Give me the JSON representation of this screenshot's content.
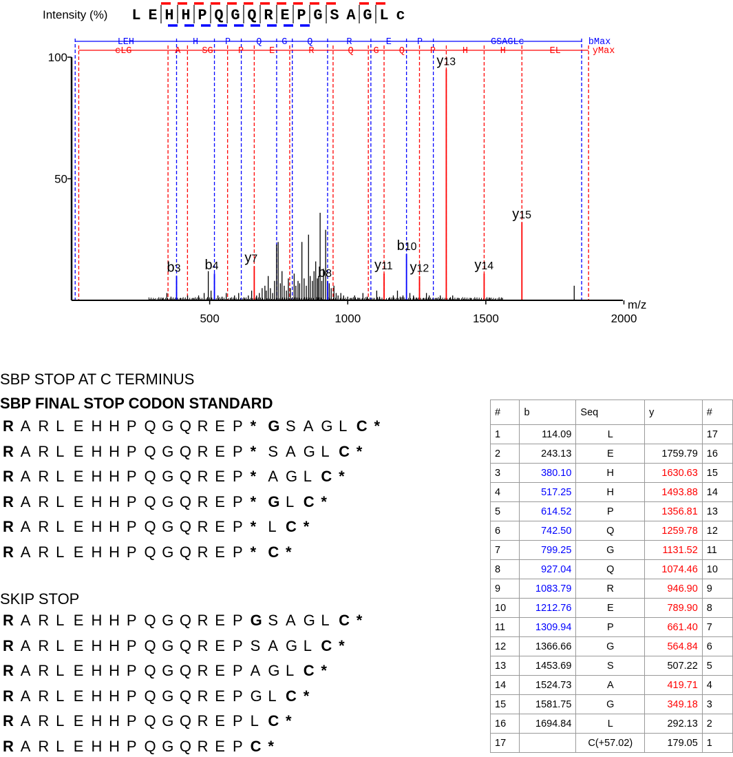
{
  "chart_data": {
    "type": "bar",
    "ylabel": "Intensity (%)",
    "xlabel": "m/z",
    "xlim": [
      0,
      2000
    ],
    "ylim": [
      0,
      100
    ],
    "x_ticks": [
      500,
      1000,
      1500,
      2000
    ],
    "y_ticks": [
      50,
      100
    ],
    "peptide": [
      "L",
      "E",
      "H",
      "H",
      "P",
      "Q",
      "G",
      "Q",
      "R",
      "E",
      "P",
      "G",
      "S",
      "A",
      "G",
      "L",
      "c"
    ],
    "b_ladder": [
      "LEH",
      "H",
      "P",
      "Q",
      "G",
      "Q",
      "R",
      "E",
      "P",
      "GSAGLc",
      "bMax"
    ],
    "y_ladder": [
      "cLG",
      "A",
      "SG",
      "P",
      "E",
      "R",
      "Q",
      "G",
      "Q",
      "P",
      "H",
      "H",
      "EL",
      "yMax"
    ],
    "b_lines": [
      13,
      380.1,
      517.25,
      614.52,
      742.5,
      799.25,
      927.04,
      1083.79,
      1212.76,
      1309.94,
      1847
    ],
    "y_lines": [
      26,
      349.18,
      419.71,
      564.84,
      661.4,
      789.9,
      946.9,
      1074.46,
      1131.52,
      1259.78,
      1356.81,
      1493.88,
      1630.63,
      1872
    ],
    "labeled_peaks": [
      {
        "label": "b3",
        "sub": "3",
        "x": 380.1,
        "y": 10,
        "color": "#0000ff"
      },
      {
        "label": "b4",
        "sub": "4",
        "x": 517.25,
        "y": 11,
        "color": "#0000ff"
      },
      {
        "label": "y7",
        "sub": "7",
        "x": 661.4,
        "y": 14,
        "color": "#ff0000"
      },
      {
        "label": "b8",
        "sub": "8",
        "x": 927.04,
        "y": 8,
        "color": "#0000ff"
      },
      {
        "label": "y11",
        "sub": "11",
        "x": 1131.52,
        "y": 11,
        "color": "#ff0000"
      },
      {
        "label": "b10",
        "sub": "10",
        "x": 1212.76,
        "y": 19,
        "color": "#0000ff"
      },
      {
        "label": "y12",
        "sub": "12",
        "x": 1259.78,
        "y": 10,
        "color": "#ff0000"
      },
      {
        "label": "y13",
        "sub": "13",
        "x": 1356.81,
        "y": 95,
        "color": "#ff0000"
      },
      {
        "label": "y14",
        "sub": "14",
        "x": 1493.88,
        "y": 11,
        "color": "#ff0000"
      },
      {
        "label": "y15",
        "sub": "15",
        "x": 1630.63,
        "y": 32,
        "color": "#ff0000"
      }
    ],
    "other_peaks": [
      [
        300,
        0.5
      ],
      [
        330,
        1
      ],
      [
        345,
        3
      ],
      [
        360,
        1.5
      ],
      [
        395,
        1
      ],
      [
        420,
        2
      ],
      [
        440,
        1
      ],
      [
        460,
        2
      ],
      [
        480,
        3
      ],
      [
        495,
        12
      ],
      [
        505,
        4
      ],
      [
        530,
        2
      ],
      [
        545,
        1.5
      ],
      [
        560,
        3
      ],
      [
        575,
        1
      ],
      [
        590,
        2
      ],
      [
        605,
        3
      ],
      [
        625,
        1
      ],
      [
        640,
        2
      ],
      [
        652,
        4
      ],
      [
        670,
        2
      ],
      [
        680,
        3
      ],
      [
        690,
        5
      ],
      [
        700,
        6
      ],
      [
        705,
        4
      ],
      [
        712,
        10
      ],
      [
        720,
        5
      ],
      [
        728,
        3
      ],
      [
        735,
        8
      ],
      [
        742,
        23
      ],
      [
        748,
        24
      ],
      [
        756,
        7
      ],
      [
        762,
        12
      ],
      [
        770,
        6
      ],
      [
        778,
        4
      ],
      [
        785,
        9
      ],
      [
        792,
        5
      ],
      [
        806,
        11
      ],
      [
        812,
        6
      ],
      [
        820,
        8
      ],
      [
        826,
        7
      ],
      [
        834,
        24
      ],
      [
        842,
        9
      ],
      [
        850,
        6
      ],
      [
        858,
        27
      ],
      [
        864,
        10
      ],
      [
        872,
        8
      ],
      [
        878,
        12
      ],
      [
        884,
        16
      ],
      [
        890,
        9
      ],
      [
        894,
        10
      ],
      [
        900,
        36
      ],
      [
        906,
        8
      ],
      [
        912,
        13
      ],
      [
        920,
        29
      ],
      [
        933,
        7
      ],
      [
        940,
        5
      ],
      [
        950,
        6
      ],
      [
        958,
        3
      ],
      [
        965,
        2
      ],
      [
        975,
        3
      ],
      [
        985,
        2
      ],
      [
        1000,
        1.5
      ],
      [
        1012,
        1
      ],
      [
        1025,
        2
      ],
      [
        1040,
        1
      ],
      [
        1055,
        3
      ],
      [
        1070,
        1.5
      ],
      [
        1095,
        1
      ],
      [
        1105,
        4
      ],
      [
        1115,
        1.5
      ],
      [
        1150,
        1
      ],
      [
        1165,
        2
      ],
      [
        1180,
        4
      ],
      [
        1190,
        1.5
      ],
      [
        1200,
        2
      ],
      [
        1225,
        3
      ],
      [
        1238,
        2
      ],
      [
        1250,
        1
      ],
      [
        1275,
        1
      ],
      [
        1285,
        3
      ],
      [
        1295,
        2
      ],
      [
        1320,
        1
      ],
      [
        1335,
        2
      ],
      [
        1370,
        1
      ],
      [
        1380,
        2
      ],
      [
        1400,
        1
      ],
      [
        1420,
        0.5
      ],
      [
        1445,
        1
      ],
      [
        1460,
        0.5
      ],
      [
        1515,
        1
      ],
      [
        1535,
        0.5
      ],
      [
        1560,
        1
      ],
      [
        1820,
        6
      ]
    ]
  },
  "sbp_stop_heading": "SBP STOP AT C TERMINUS",
  "sbp_final_heading": "SBP FINAL STOP CODON STANDARD",
  "skip_stop_heading": "SKIP STOP",
  "sbp_rows": [
    "RARLEHHPQGQREP*GSAGLC*",
    "RARLEHHPQGQREP*SAGLC*",
    "RARLEHHPQGQREP*AGLC*",
    "RARLEHHPQGQREP*GLC*",
    "RARLEHHPQGQREP*LC*",
    "RARLEHHPQGQREP*C*"
  ],
  "skip_rows": [
    "RARLEHHPQGQREPGSAGLC*",
    "RARLEHHPQGQREPSAGLC*",
    "RARLEHHPQGQREPAGLC*",
    "RARLEHHPQGQREPGLC*",
    "RARLEHHPQGQREPLC*",
    "RARLEHHPQGQREPC*"
  ],
  "table": {
    "headers": [
      "#",
      "b",
      "Seq",
      "y",
      "#"
    ],
    "rows": [
      [
        "1",
        "114.09",
        "L",
        "",
        "17"
      ],
      [
        "2",
        "243.13",
        "E",
        "1759.79",
        "16"
      ],
      [
        "3",
        "380.10",
        "H",
        "1630.63",
        "15"
      ],
      [
        "4",
        "517.25",
        "H",
        "1493.88",
        "14"
      ],
      [
        "5",
        "614.52",
        "P",
        "1356.81",
        "13"
      ],
      [
        "6",
        "742.50",
        "Q",
        "1259.78",
        "12"
      ],
      [
        "7",
        "799.25",
        "G",
        "1131.52",
        "11"
      ],
      [
        "8",
        "927.04",
        "Q",
        "1074.46",
        "10"
      ],
      [
        "9",
        "1083.79",
        "R",
        "946.90",
        "9"
      ],
      [
        "10",
        "1212.76",
        "E",
        "789.90",
        "8"
      ],
      [
        "11",
        "1309.94",
        "P",
        "661.40",
        "7"
      ],
      [
        "12",
        "1366.66",
        "G",
        "564.84",
        "6"
      ],
      [
        "13",
        "1453.69",
        "S",
        "507.22",
        "5"
      ],
      [
        "14",
        "1524.73",
        "A",
        "419.71",
        "4"
      ],
      [
        "15",
        "1581.75",
        "G",
        "349.18",
        "3"
      ],
      [
        "16",
        "1694.84",
        "L",
        "292.13",
        "2"
      ],
      [
        "17",
        "",
        "C(+57.02)",
        "179.05",
        "1"
      ]
    ],
    "b_colored": [
      false,
      false,
      true,
      true,
      true,
      true,
      true,
      true,
      true,
      true,
      true,
      false,
      false,
      false,
      false,
      false,
      false
    ],
    "y_colored": [
      false,
      false,
      true,
      true,
      true,
      true,
      true,
      true,
      true,
      true,
      true,
      true,
      false,
      true,
      true,
      false,
      false
    ]
  }
}
